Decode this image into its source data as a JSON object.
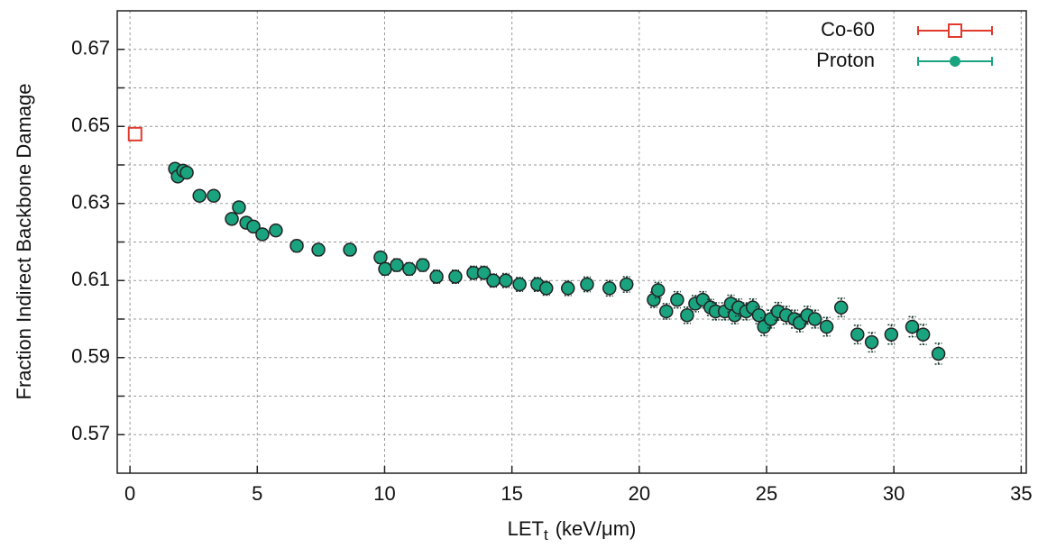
{
  "chart_data": {
    "type": "scatter",
    "y_label": "Fraction Indirect Backbone Damage",
    "x_label": {
      "text": "LET",
      "subscript": "t",
      "unit": "(keV/μm)"
    },
    "xlim": [
      -0.5,
      35.2
    ],
    "ylim": [
      0.56,
      0.68
    ],
    "xticks": [
      0,
      5,
      10,
      15,
      20,
      25,
      30,
      35
    ],
    "yticks": [
      0.57,
      0.59,
      0.61,
      0.63,
      0.65,
      0.67
    ],
    "yminorticks": [
      0.58,
      0.6,
      0.62,
      0.64,
      0.66
    ],
    "grid": true,
    "legend": "upper right",
    "series": [
      {
        "name": "Co-60",
        "color": "#e03a2e",
        "marker": "square",
        "x": [
          0.2
        ],
        "values": [
          0.648
        ],
        "errors": [
          0.0013
        ]
      },
      {
        "name": "Proton",
        "color": "#19a37f",
        "marker": "circle",
        "x": [
          1.77,
          1.88,
          2.09,
          2.23,
          2.73,
          3.29,
          4.0,
          4.28,
          4.57,
          4.85,
          5.2,
          5.73,
          6.55,
          7.4,
          8.64,
          9.84,
          10.02,
          10.48,
          10.97,
          11.5,
          12.04,
          12.78,
          13.49,
          13.9,
          14.27,
          14.76,
          15.3,
          16.0,
          16.35,
          17.2,
          17.95,
          18.83,
          19.5,
          20.57,
          20.74,
          21.06,
          21.49,
          21.88,
          22.2,
          22.5,
          22.8,
          23.0,
          23.36,
          23.6,
          23.75,
          23.9,
          24.2,
          24.46,
          24.7,
          24.9,
          25.17,
          25.45,
          25.77,
          26.1,
          26.3,
          26.6,
          26.9,
          27.36,
          27.93,
          28.57,
          29.13,
          29.9,
          30.72,
          31.15,
          31.75
        ],
        "values": [
          0.639,
          0.637,
          0.6385,
          0.638,
          0.632,
          0.632,
          0.626,
          0.629,
          0.625,
          0.624,
          0.622,
          0.623,
          0.619,
          0.618,
          0.618,
          0.616,
          0.613,
          0.614,
          0.613,
          0.614,
          0.611,
          0.611,
          0.612,
          0.612,
          0.61,
          0.61,
          0.609,
          0.609,
          0.608,
          0.608,
          0.609,
          0.608,
          0.609,
          0.605,
          0.6075,
          0.602,
          0.605,
          0.601,
          0.604,
          0.605,
          0.603,
          0.602,
          0.602,
          0.604,
          0.601,
          0.603,
          0.602,
          0.603,
          0.601,
          0.598,
          0.6,
          0.602,
          0.601,
          0.6,
          0.599,
          0.601,
          0.6,
          0.598,
          0.603,
          0.596,
          0.594,
          0.596,
          0.598,
          0.596,
          0.591
        ],
        "errors": [
          0.0013,
          0.0013,
          0.0013,
          0.0013,
          0.0013,
          0.0013,
          0.0014,
          0.0014,
          0.0014,
          0.0014,
          0.0014,
          0.0014,
          0.0015,
          0.0015,
          0.0015,
          0.0015,
          0.0016,
          0.0016,
          0.0016,
          0.0016,
          0.0017,
          0.0017,
          0.0017,
          0.0017,
          0.0017,
          0.0018,
          0.0018,
          0.0018,
          0.0018,
          0.0019,
          0.0019,
          0.002,
          0.002,
          0.002,
          0.002,
          0.002,
          0.0021,
          0.0021,
          0.0021,
          0.0021,
          0.0021,
          0.0022,
          0.0022,
          0.0022,
          0.0022,
          0.0022,
          0.0022,
          0.0022,
          0.0022,
          0.0023,
          0.0023,
          0.0023,
          0.0023,
          0.0023,
          0.0023,
          0.0023,
          0.0023,
          0.0024,
          0.0024,
          0.0024,
          0.0025,
          0.0025,
          0.0026,
          0.0026,
          0.0027
        ]
      }
    ]
  }
}
